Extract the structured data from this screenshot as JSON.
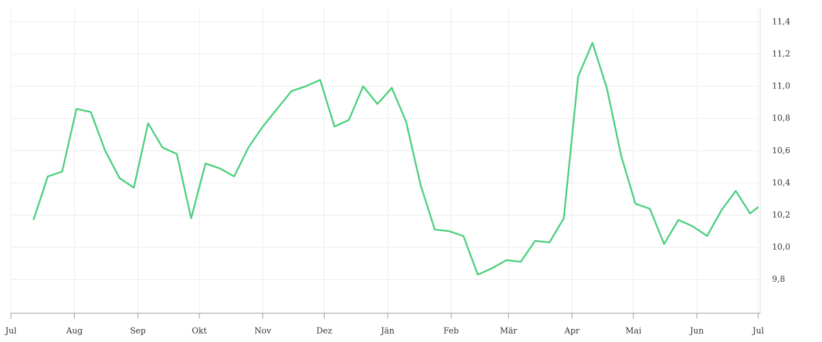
{
  "chart_data": {
    "type": "line",
    "x": [
      11,
      18,
      25,
      32,
      39,
      46,
      53,
      60,
      67,
      74,
      81,
      88,
      95,
      102,
      109,
      116,
      123,
      130,
      137,
      144,
      151,
      158,
      165,
      172,
      179,
      186,
      193,
      200,
      207,
      214,
      221,
      228,
      235,
      242,
      249,
      256,
      263,
      270,
      277,
      284,
      291,
      298,
      305,
      312,
      319,
      326,
      333,
      340,
      347,
      354,
      361,
      365
    ],
    "series": [
      {
        "color": "#4cd07d",
        "values": [
          10.17,
          10.44,
          10.47,
          10.86,
          10.84,
          10.6,
          10.43,
          10.37,
          10.77,
          10.62,
          10.58,
          10.18,
          10.52,
          10.49,
          10.44,
          10.62,
          10.75,
          10.86,
          10.97,
          11.0,
          11.04,
          10.75,
          10.79,
          11.0,
          10.89,
          10.99,
          10.78,
          10.39,
          10.11,
          10.1,
          10.07,
          9.83,
          9.87,
          9.92,
          9.91,
          10.04,
          10.03,
          10.18,
          11.06,
          11.27,
          10.99,
          10.57,
          10.27,
          10.24,
          10.02,
          10.17,
          10.13,
          10.07,
          10.23,
          10.35,
          10.21,
          10.25
        ]
      }
    ],
    "xlim": [
      0,
      365
    ],
    "xticks": [
      {
        "value": 0,
        "label": "Jul"
      },
      {
        "value": 31,
        "label": "Aug"
      },
      {
        "value": 62,
        "label": "Sep"
      },
      {
        "value": 92,
        "label": "Okt"
      },
      {
        "value": 123,
        "label": "Nov"
      },
      {
        "value": 153,
        "label": "Dez"
      },
      {
        "value": 184,
        "label": "Jän"
      },
      {
        "value": 215,
        "label": "Feb"
      },
      {
        "value": 243,
        "label": "Mär"
      },
      {
        "value": 274,
        "label": "Apr"
      },
      {
        "value": 304,
        "label": "Mai"
      },
      {
        "value": 335,
        "label": "Jun"
      },
      {
        "value": 365,
        "label": "Jul"
      }
    ],
    "ylim": [
      9.59,
      11.485
    ],
    "yticks": [
      {
        "value": 9.8,
        "label": "9,8"
      },
      {
        "value": 10.0,
        "label": "10,0"
      },
      {
        "value": 10.2,
        "label": "10,2"
      },
      {
        "value": 10.4,
        "label": "10,4"
      },
      {
        "value": 10.6,
        "label": "10,6"
      },
      {
        "value": 10.8,
        "label": "10,8"
      },
      {
        "value": 11.0,
        "label": "11,0"
      },
      {
        "value": 11.2,
        "label": "11,2"
      },
      {
        "value": 11.4,
        "label": "11,4"
      }
    ],
    "grid": true
  }
}
